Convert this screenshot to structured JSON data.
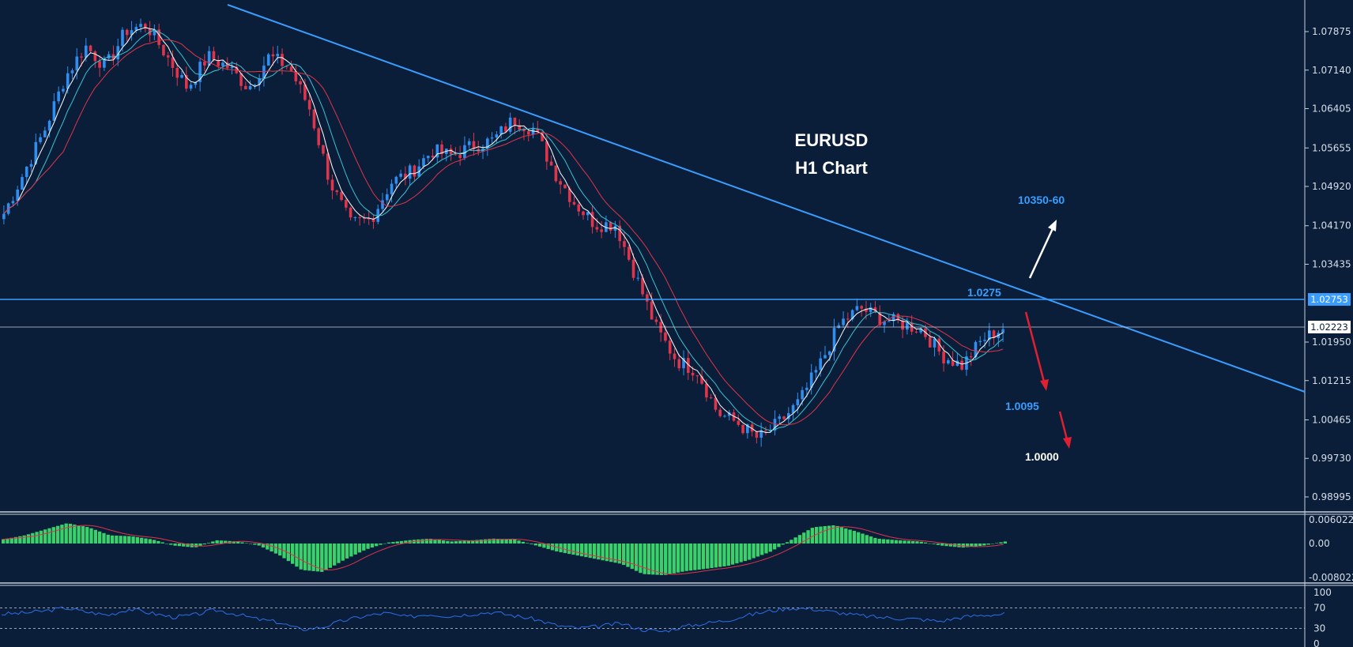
{
  "chart_data": {
    "type": "candlestick",
    "symbol": "EURUSD",
    "timeframe": "H1 Chart",
    "title_lines": [
      "EURUSD",
      "H1 Chart"
    ],
    "price_axis_labels": [
      "1.07875",
      "1.07140",
      "1.06405",
      "1.05655",
      "1.04920",
      "1.04170",
      "1.03435",
      "1.02753",
      "1.02223",
      "1.01950",
      "1.01215",
      "1.00465",
      "0.99730",
      "0.98995"
    ],
    "ylim": [
      0.987,
      1.0838
    ],
    "current_price": "1.02223",
    "horizontal_line_price": "1.02753",
    "annotations": {
      "target_up": "10350-60",
      "resistance": "1.0275",
      "support_1": "1.0095",
      "support_2": "1.0000"
    },
    "price_path": [
      1.044,
      1.052,
      1.06,
      1.07,
      1.076,
      1.072,
      1.079,
      1.08,
      1.074,
      1.068,
      1.074,
      1.072,
      1.068,
      1.074,
      1.072,
      1.064,
      1.05,
      1.042,
      1.043,
      1.05,
      1.052,
      1.056,
      1.055,
      1.057,
      1.058,
      1.062,
      1.06,
      1.052,
      1.046,
      1.042,
      1.042,
      1.032,
      1.022,
      1.016,
      1.014,
      1.006,
      1.004,
      1.001,
      1.004,
      1.008,
      1.015,
      1.023,
      1.026,
      1.024,
      1.023,
      1.022,
      1.017,
      1.015,
      1.02,
      1.0222
    ],
    "macd": {
      "axis_labels": [
        "0.006022",
        "0.00",
        "-0.008022"
      ],
      "range": [
        -0.008,
        0.006
      ],
      "histogram": [
        0.001,
        0.002,
        0.0035,
        0.005,
        0.004,
        0.002,
        0.0018,
        0.001,
        -0.0005,
        -0.001,
        0.0008,
        0.0005,
        -0.0005,
        -0.003,
        -0.0065,
        -0.007,
        -0.004,
        -0.0015,
        0.0002,
        0.0008,
        0.0012,
        0.0005,
        0.0008,
        0.0012,
        0.001,
        -0.0005,
        -0.002,
        -0.003,
        -0.004,
        -0.005,
        -0.0075,
        -0.0078,
        -0.0068,
        -0.0062,
        -0.0055,
        -0.004,
        -0.002,
        0.001,
        0.004,
        0.0045,
        0.003,
        0.0012,
        0.0008,
        0.0005,
        -0.0005,
        -0.001,
        -0.0005,
        0.0005
      ]
    },
    "rsi": {
      "axis_labels": [
        "100",
        "70",
        "30",
        "0"
      ],
      "levels": [
        70,
        30
      ],
      "values": [
        58,
        60,
        64,
        70,
        62,
        56,
        68,
        60,
        52,
        56,
        66,
        58,
        48,
        42,
        28,
        32,
        45,
        54,
        60,
        52,
        58,
        54,
        58,
        62,
        55,
        48,
        36,
        30,
        34,
        40,
        28,
        24,
        34,
        40,
        46,
        56,
        64,
        70,
        68,
        62,
        56,
        52,
        50,
        48,
        44,
        52,
        56,
        58
      ]
    }
  },
  "colors": {
    "background": "#0a1e3a",
    "bull_candle": "#2f8ef0",
    "bear_candle": "#e0344a",
    "trendline": "#3a9dfd",
    "hline": "#3a9dfd",
    "ma_fast": "#ffffff",
    "ma_mid": "#38c4d4",
    "ma_slow": "#e0344a",
    "macd_hist": "#3ad06a",
    "macd_signal": "#e0344a",
    "rsi_line": "#2f6ee8",
    "arrow_up": "#ffffff",
    "arrow_down": "#e02030",
    "label_blue": "#3a9dfd",
    "label_white": "#ffffff"
  }
}
